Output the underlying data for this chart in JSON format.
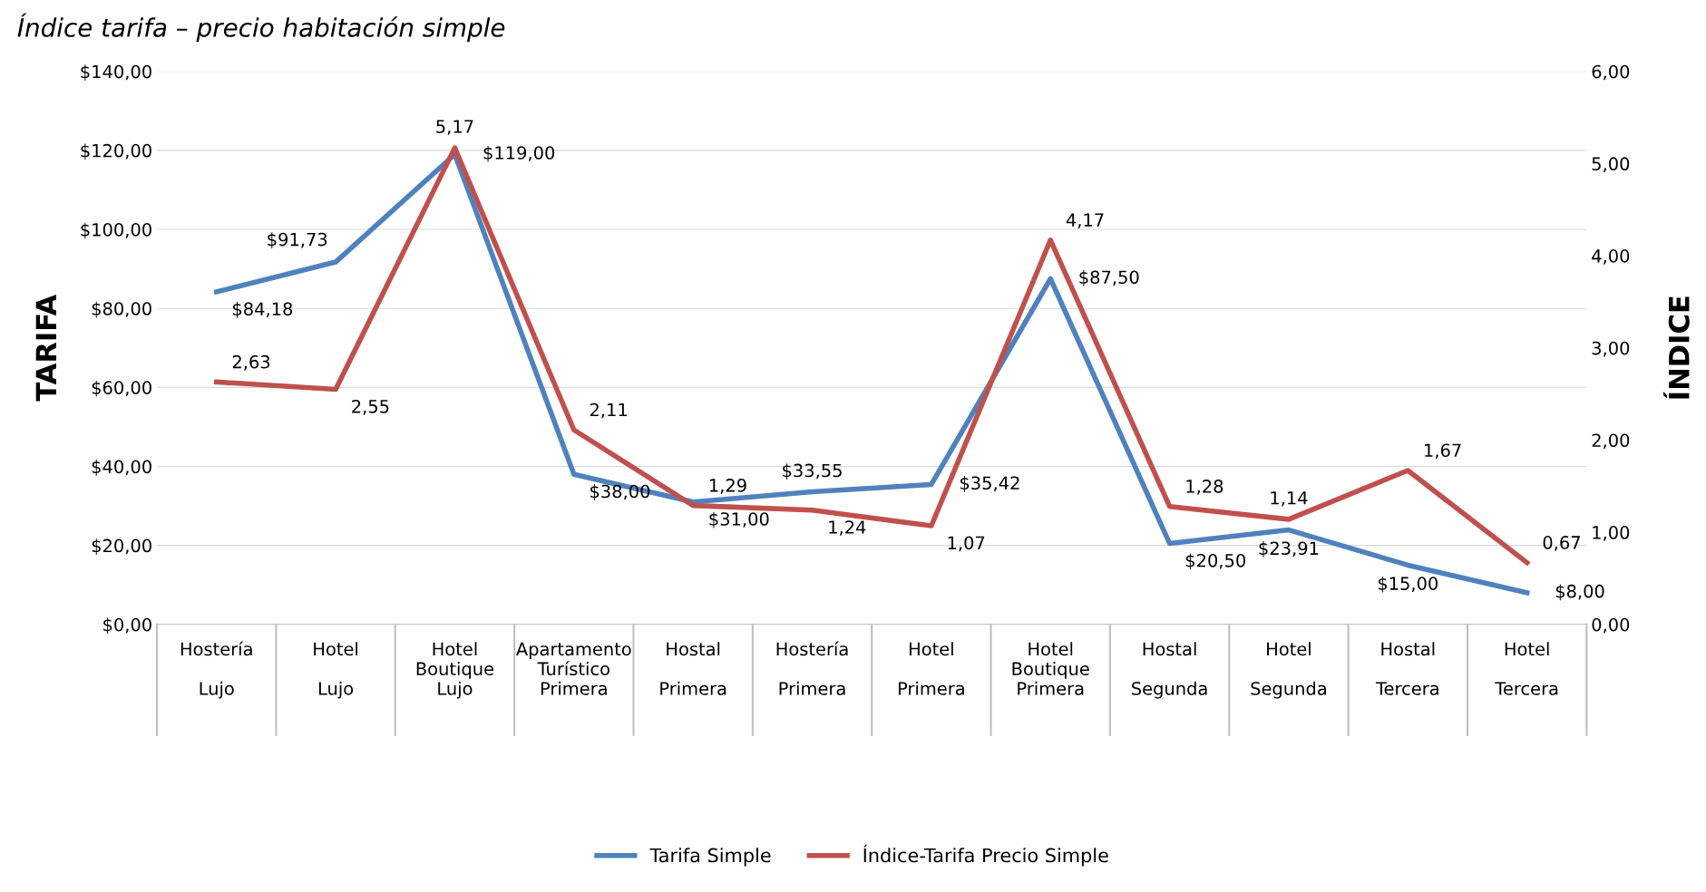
{
  "chart_data": {
    "type": "line",
    "title": "Índice tarifa – precio habitación simple",
    "categories": [
      "Hostería\n\nLujo",
      "Hotel\n\nLujo",
      "Hotel\nBoutique\nLujo",
      "Apartamento\nTurístico\nPrimera",
      "Hostal\n\nPrimera",
      "Hostería\n\nPrimera",
      "Hotel\n\nPrimera",
      "Hotel\nBoutique\nPrimera",
      "Hostal\n\nSegunda",
      "Hotel\n\nSegunda",
      "Hostal\n\nTercera",
      "Hotel\n\nTercera"
    ],
    "series": [
      {
        "name": "Tarifa Simple",
        "color": "#4f81bd",
        "values": [
          84.18,
          91.73,
          119.0,
          38.0,
          31.0,
          33.55,
          35.42,
          87.5,
          20.5,
          23.91,
          15.0,
          8.0
        ],
        "value_labels": [
          "$84,18",
          "$91,73",
          "$119,00",
          "$38,00",
          "$31,00",
          "$33,55",
          "$35,42",
          "$87,50",
          "$20,50",
          "$23,91",
          "$15,00",
          "$8,00"
        ]
      },
      {
        "name": "Índice-Tarifa Precio Simple",
        "color": "#c0504d",
        "axis": "y2",
        "values": [
          2.63,
          2.55,
          5.17,
          2.11,
          1.29,
          1.24,
          1.07,
          4.17,
          1.28,
          1.14,
          1.67,
          0.67
        ],
        "value_labels": [
          "2,63",
          "2,55",
          "5,17",
          "2,11",
          "1,29",
          "1,24",
          "1,07",
          "4,17",
          "1,28",
          "1,14",
          "1,67",
          "0,67"
        ]
      }
    ],
    "ylabel": "TARIFA",
    "y2label": "ÍNDICE",
    "ylim": [
      0,
      140
    ],
    "yticks": [
      {
        "value": 0,
        "label": "$0,00"
      },
      {
        "value": 20,
        "label": "$20,00"
      },
      {
        "value": 40,
        "label": "$40,00"
      },
      {
        "value": 60,
        "label": "$60,00"
      },
      {
        "value": 80,
        "label": "$80,00"
      },
      {
        "value": 100,
        "label": "$100,00"
      },
      {
        "value": 120,
        "label": "$120,00"
      },
      {
        "value": 140,
        "label": "$140,00"
      }
    ],
    "y2lim": [
      0,
      6
    ],
    "y2ticks": [
      {
        "value": 0,
        "label": "0,00"
      },
      {
        "value": 1,
        "label": "1,00"
      },
      {
        "value": 2,
        "label": "2,00"
      },
      {
        "value": 3,
        "label": "3,00"
      },
      {
        "value": 4,
        "label": "4,00"
      },
      {
        "value": 5,
        "label": "5,00"
      },
      {
        "value": 6,
        "label": "6,00"
      }
    ],
    "grid": "y",
    "legend": "bottom",
    "marker": "none",
    "line_style": "solid"
  }
}
